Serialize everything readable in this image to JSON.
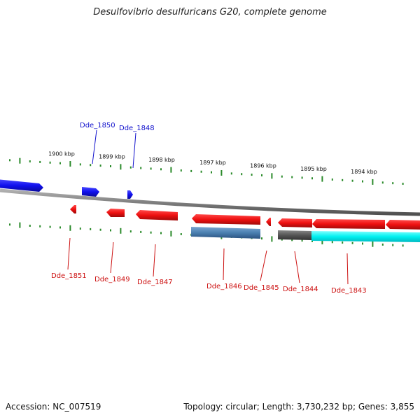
{
  "title": "Desulfovibrio desulfuricans G20, complete genome",
  "footer": {
    "accession": "Accession: NC_007519",
    "summary": "Topology: circular; Length: 3,730,232 bp; Genes: 3,855"
  },
  "colors": {
    "forward_gene": "#1010ee",
    "reverse_gene": "#ee1010",
    "backbone": "#808080",
    "tick": "#2a8a2a",
    "rna_gene": "#4a7fb0",
    "highlight_cyan": "#00f0f0",
    "dark_block": "#555555",
    "label_forward": "#1010cc",
    "label_reverse": "#cc1010"
  },
  "kbp_labels": [
    "1900 kbp",
    "1899 kbp",
    "1898 kbp",
    "1897 kbp",
    "1896 kbp",
    "1895 kbp",
    "1894 kbp"
  ],
  "forward_labels": [
    "Dde_1850",
    "Dde_1848"
  ],
  "reverse_labels": [
    "Dde_1851",
    "Dde_1849",
    "Dde_1847",
    "Dde_1846",
    "Dde_1845",
    "Dde_1844",
    "Dde_1843"
  ]
}
